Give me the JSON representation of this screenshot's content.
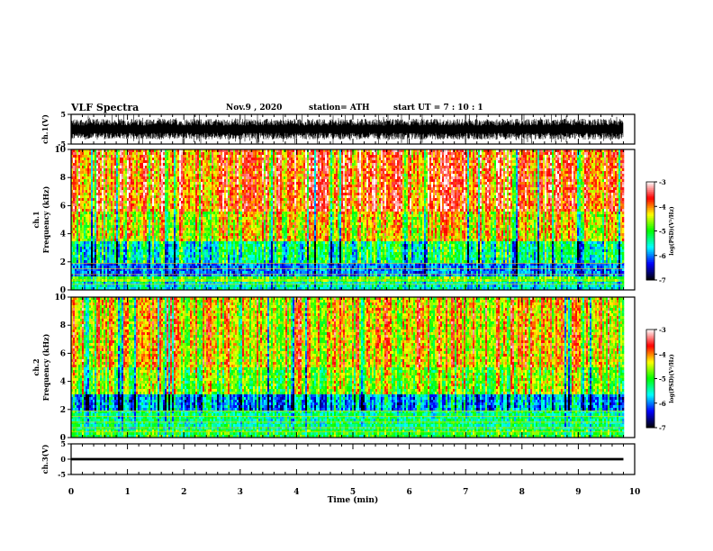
{
  "header": {
    "title": "VLF Spectra",
    "date": "Nov.9 , 2020",
    "station": "station= ATH",
    "start": "start UT = 7 : 10 : 1"
  },
  "colorbar": {
    "label": "log(PSD)(V²/Hz)",
    "ticks": [
      -3,
      -4,
      -5,
      -6,
      -7
    ],
    "colors": [
      "#ffffff",
      "#ff0000",
      "#ffff00",
      "#00ff00",
      "#00ffff",
      "#0000ff",
      "#000000"
    ]
  },
  "chart_data": [
    {
      "type": "line",
      "name": "waveform-ch1",
      "ylabel": "ch.1(V)",
      "ylim": [
        -5,
        5
      ],
      "yticks": [
        "5",
        "-5"
      ],
      "xlim": [
        0,
        10
      ],
      "x_coverage_min": [
        0,
        9.8
      ],
      "amplitude_range_V": [
        -3.5,
        3.5
      ]
    },
    {
      "type": "heatmap",
      "name": "spectrogram-ch1",
      "ylabel": "ch.1",
      "ylabel2": "Frequency (kHz)",
      "ylim": [
        0,
        10
      ],
      "yticks": [
        "0",
        "2",
        "4",
        "6",
        "8",
        "10"
      ],
      "xlim": [
        0,
        10
      ],
      "x_coverage_min": [
        0,
        9.8
      ],
      "zlim": [
        -7,
        -3
      ],
      "zlabel": "log(PSD)(V²/Hz)",
      "bands": [
        {
          "f_kHz": [
            0,
            0.5
          ],
          "logPSD": -5.5
        },
        {
          "f_kHz": [
            0.5,
            1.0
          ],
          "logPSD": -4.8
        },
        {
          "f_kHz": [
            1.0,
            2.0
          ],
          "logPSD": -6.0
        },
        {
          "f_kHz": [
            2.0,
            3.5
          ],
          "logPSD": -5.3
        },
        {
          "f_kHz": [
            3.5,
            5.5
          ],
          "logPSD": -4.3
        },
        {
          "f_kHz": [
            5.5,
            10.0
          ],
          "logPSD": -3.8
        }
      ]
    },
    {
      "type": "heatmap",
      "name": "spectrogram-ch2",
      "ylabel": "ch.2",
      "ylabel2": "Frequency (kHz)",
      "ylim": [
        0,
        10
      ],
      "yticks": [
        "0",
        "2",
        "4",
        "6",
        "8",
        "10"
      ],
      "xlim": [
        0,
        10
      ],
      "x_coverage_min": [
        0,
        9.8
      ],
      "zlim": [
        -7,
        -3
      ],
      "zlabel": "log(PSD)(V²/Hz)",
      "bands": [
        {
          "f_kHz": [
            0,
            0.5
          ],
          "logPSD": -5.0
        },
        {
          "f_kHz": [
            0.5,
            2.0
          ],
          "logPSD": -5.3
        },
        {
          "f_kHz": [
            2.0,
            3.0
          ],
          "logPSD": -5.8
        },
        {
          "f_kHz": [
            3.0,
            5.0
          ],
          "logPSD": -4.6
        },
        {
          "f_kHz": [
            5.0,
            10.0
          ],
          "logPSD": -4.2
        }
      ]
    },
    {
      "type": "line",
      "name": "waveform-ch3",
      "ylabel": "ch.3(V)",
      "ylim": [
        -5,
        5
      ],
      "yticks": [
        "5",
        "0",
        "-5"
      ],
      "xlim": [
        0,
        10
      ],
      "x_coverage_min": [
        0,
        9.8
      ],
      "amplitude_range_V": [
        -0.4,
        0.4
      ]
    }
  ],
  "xaxis": {
    "label": "Time (min)",
    "ticks": [
      "0",
      "1",
      "2",
      "3",
      "4",
      "5",
      "6",
      "7",
      "8",
      "9",
      "10"
    ]
  }
}
